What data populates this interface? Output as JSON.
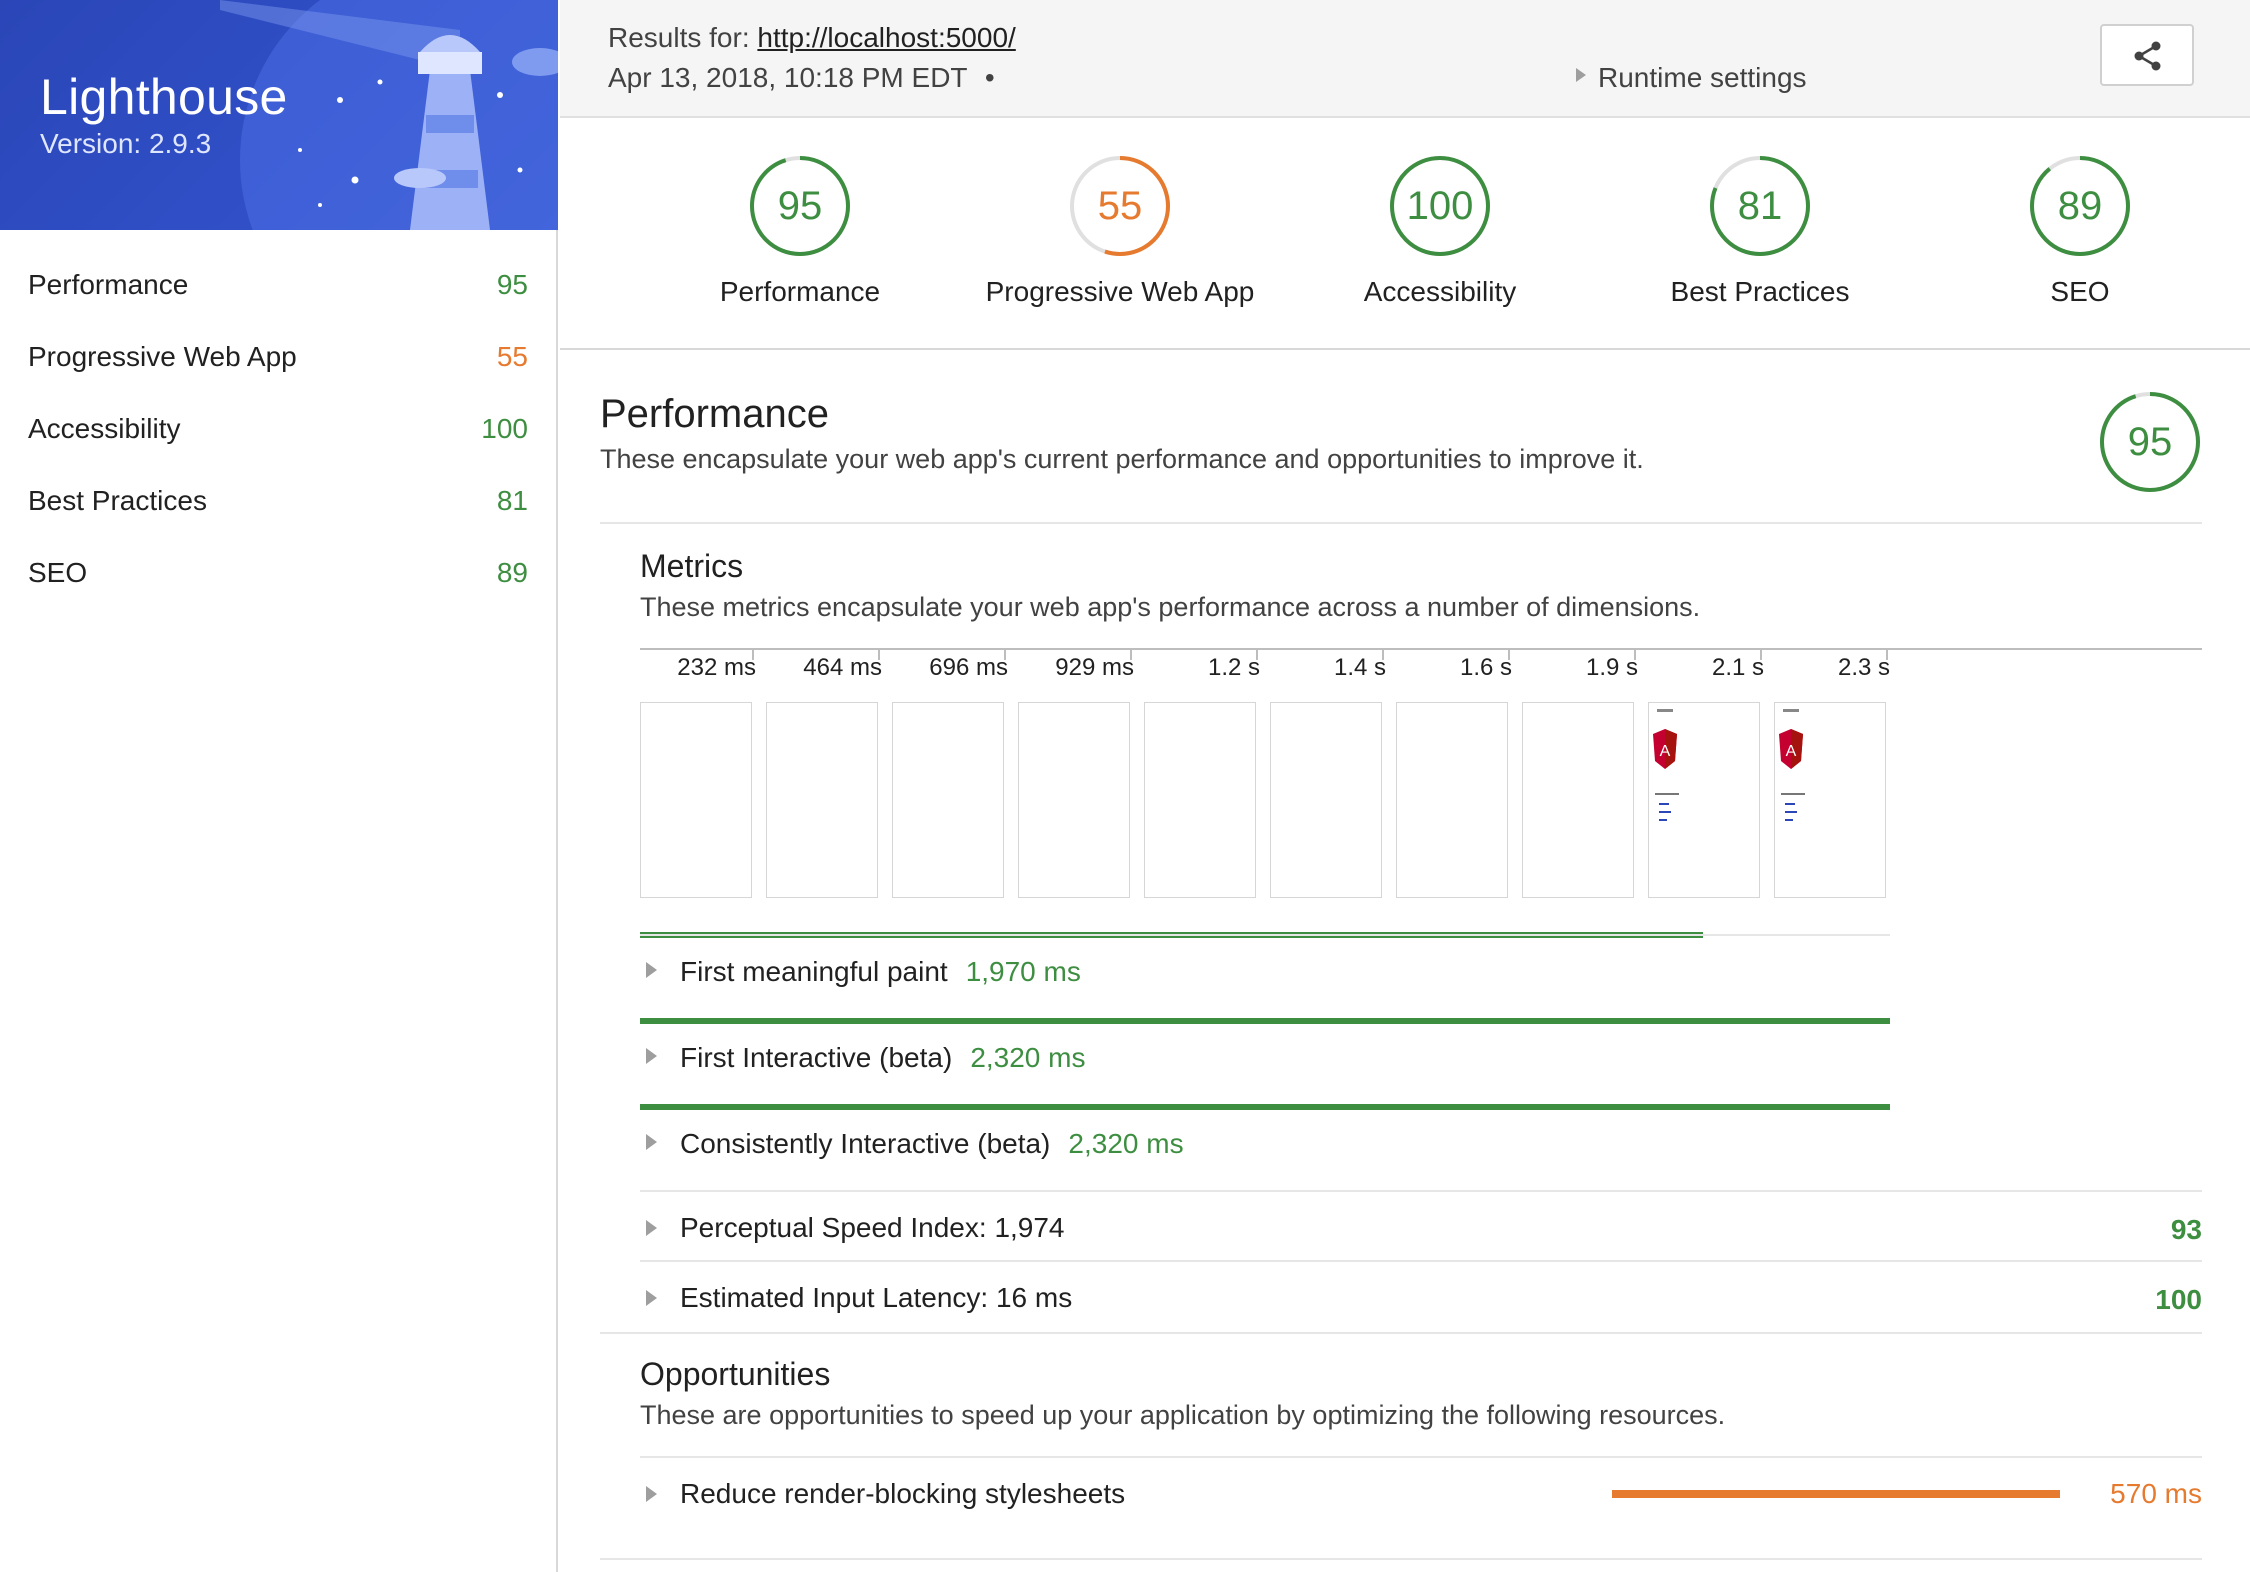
{
  "app": {
    "title": "Lighthouse",
    "version": "Version: 2.9.3"
  },
  "colors": {
    "pass": "#3e8e41",
    "average": "#e67a2f",
    "header_blue": "#2a46b7"
  },
  "sidebar": {
    "items": [
      {
        "label": "Performance",
        "score": "95",
        "status": "pass"
      },
      {
        "label": "Progressive Web App",
        "score": "55",
        "status": "average"
      },
      {
        "label": "Accessibility",
        "score": "100",
        "status": "pass"
      },
      {
        "label": "Best Practices",
        "score": "81",
        "status": "pass"
      },
      {
        "label": "SEO",
        "score": "89",
        "status": "pass"
      }
    ]
  },
  "header": {
    "results_prefix": "Results for: ",
    "url": "http://localhost:5000/",
    "date": "Apr 13, 2018, 10:18 PM EDT",
    "separator": "•",
    "runtime_settings": "Runtime settings",
    "share_icon": "share-icon"
  },
  "gauges": [
    {
      "label": "Performance",
      "score": 95,
      "status": "pass"
    },
    {
      "label": "Progressive Web App",
      "score": 55,
      "status": "average"
    },
    {
      "label": "Accessibility",
      "score": 100,
      "status": "pass"
    },
    {
      "label": "Best Practices",
      "score": 81,
      "status": "pass"
    },
    {
      "label": "SEO",
      "score": 89,
      "status": "pass"
    }
  ],
  "performance": {
    "title": "Performance",
    "description": "These encapsulate your web app's current performance and opportunities to improve it.",
    "score": 95,
    "metrics": {
      "title": "Metrics",
      "description": "These metrics encapsulate your web app's performance across a number of dimensions.",
      "filmstrip": {
        "timestamps": [
          "232 ms",
          "464 ms",
          "696 ms",
          "929 ms",
          "1.2 s",
          "1.4 s",
          "1.6 s",
          "1.9 s",
          "2.1 s",
          "2.3 s"
        ],
        "frames_with_content": [
          false,
          false,
          false,
          false,
          false,
          false,
          false,
          false,
          true,
          true
        ]
      },
      "timeline_metrics": [
        {
          "name": "First meaningful paint",
          "value": "1,970 ms",
          "fraction": 0.85
        },
        {
          "name": "First Interactive (beta)",
          "value": "2,320 ms",
          "fraction": 1.0
        },
        {
          "name": "Consistently Interactive (beta)",
          "value": "2,320 ms",
          "fraction": 1.0
        }
      ],
      "scored_metrics": [
        {
          "name": "Perceptual Speed Index: 1,974",
          "score": "93"
        },
        {
          "name": "Estimated Input Latency: 16 ms",
          "score": "100"
        }
      ]
    },
    "opportunities": {
      "title": "Opportunities",
      "description": "These are opportunities to speed up your application by optimizing the following resources.",
      "items": [
        {
          "name": "Reduce render-blocking stylesheets",
          "value": "570 ms"
        }
      ]
    }
  }
}
